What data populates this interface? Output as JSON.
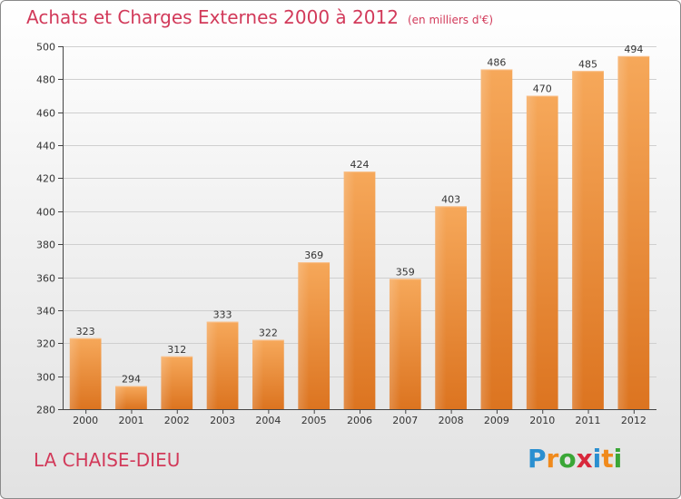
{
  "title": "Achats et Charges Externes 2000 à 2012",
  "unit_note": "(en milliers d'€)",
  "location": "LA CHAISE-DIEU",
  "logo": {
    "text": "Proxiti",
    "letters": [
      "P",
      "r",
      "o",
      "x",
      "i",
      "t",
      "i"
    ],
    "colors": [
      "#2a8fd0",
      "#f08a1c",
      "#3aa636",
      "#d8283c",
      "#2a8fd0",
      "#f08a1c",
      "#3aa636"
    ]
  },
  "colors": {
    "title": "#d23a5a",
    "bar_top": "#f6a85a",
    "bar_bottom": "#dc7420",
    "axis": "#444444"
  },
  "chart_data": {
    "type": "bar",
    "categories": [
      "2000",
      "2001",
      "2002",
      "2003",
      "2004",
      "2005",
      "2006",
      "2007",
      "2008",
      "2009",
      "2010",
      "2011",
      "2012"
    ],
    "values": [
      323,
      294,
      312,
      333,
      322,
      369,
      424,
      359,
      403,
      486,
      470,
      485,
      494
    ],
    "ylim": [
      280,
      500
    ],
    "yticks": [
      280,
      300,
      320,
      340,
      360,
      380,
      400,
      420,
      440,
      460,
      480,
      500
    ],
    "grid": true,
    "xlabel": "",
    "ylabel": ""
  }
}
